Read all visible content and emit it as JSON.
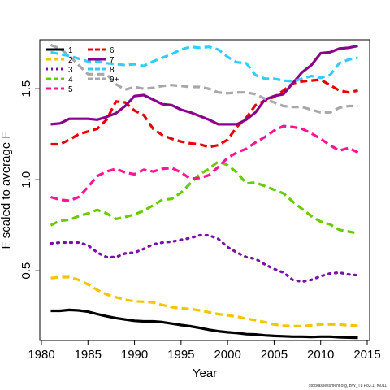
{
  "chart_data": {
    "type": "line",
    "xlabel": "Year",
    "ylabel": "F scaled to average F",
    "xlim": [
      1980,
      2015
    ],
    "ylim": [
      0.1,
      1.9
    ],
    "xticks": [
      1980,
      1985,
      1990,
      1995,
      2000,
      2005,
      2010,
      2015
    ],
    "yticks": [
      0.5,
      1.0,
      1.5
    ],
    "legend_position": "top-left",
    "grid": false,
    "x": [
      1981,
      1982,
      1983,
      1984,
      1985,
      1986,
      1987,
      1988,
      1989,
      1990,
      1991,
      1992,
      1993,
      1994,
      1995,
      1996,
      1997,
      1998,
      1999,
      2000,
      2001,
      2002,
      2003,
      2004,
      2005,
      2006,
      2007,
      2008,
      2009,
      2010,
      2011,
      2012,
      2013,
      2014
    ],
    "series": [
      {
        "name": "1",
        "color": "#000000",
        "dash": "solid",
        "values": [
          0.28,
          0.28,
          0.285,
          0.282,
          0.275,
          0.262,
          0.25,
          0.24,
          0.232,
          0.225,
          0.222,
          0.222,
          0.218,
          0.21,
          0.202,
          0.195,
          0.186,
          0.176,
          0.168,
          0.162,
          0.158,
          0.152,
          0.15,
          0.145,
          0.142,
          0.14,
          0.138,
          0.138,
          0.136,
          0.138,
          0.138,
          0.135,
          0.133,
          0.132
        ]
      },
      {
        "name": "2",
        "color": "#f5c400",
        "dash": "dash",
        "values": [
          0.46,
          0.465,
          0.465,
          0.45,
          0.425,
          0.395,
          0.37,
          0.355,
          0.34,
          0.332,
          0.33,
          0.326,
          0.312,
          0.3,
          0.293,
          0.29,
          0.282,
          0.272,
          0.262,
          0.255,
          0.248,
          0.237,
          0.228,
          0.218,
          0.205,
          0.198,
          0.196,
          0.196,
          0.2,
          0.205,
          0.205,
          0.205,
          0.2,
          0.198
        ]
      },
      {
        "name": "3",
        "color": "#7b10a8",
        "dash": "dot",
        "values": [
          0.65,
          0.655,
          0.655,
          0.655,
          0.64,
          0.6,
          0.575,
          0.575,
          0.595,
          0.6,
          0.62,
          0.645,
          0.655,
          0.66,
          0.67,
          0.68,
          0.695,
          0.695,
          0.675,
          0.63,
          0.6,
          0.575,
          0.565,
          0.535,
          0.51,
          0.49,
          0.45,
          0.44,
          0.45,
          0.47,
          0.485,
          0.49,
          0.48,
          0.475
        ]
      },
      {
        "name": "4",
        "color": "#66cc00",
        "dash": "dash",
        "values": [
          0.75,
          0.775,
          0.78,
          0.8,
          0.815,
          0.835,
          0.815,
          0.785,
          0.795,
          0.81,
          0.83,
          0.86,
          0.89,
          0.895,
          0.93,
          0.98,
          1.03,
          1.06,
          1.1,
          1.08,
          1.04,
          0.98,
          0.985,
          0.965,
          0.945,
          0.925,
          0.88,
          0.84,
          0.8,
          0.77,
          0.755,
          0.725,
          0.715,
          0.705
        ]
      },
      {
        "name": "5",
        "color": "#ff1493",
        "dash": "dash",
        "values": [
          0.905,
          0.89,
          0.885,
          0.905,
          0.96,
          1.02,
          1.045,
          1.06,
          1.04,
          1.03,
          1.055,
          1.045,
          1.06,
          1.065,
          1.04,
          1.005,
          1.01,
          1.025,
          1.07,
          1.12,
          1.15,
          1.17,
          1.205,
          1.235,
          1.27,
          1.295,
          1.29,
          1.28,
          1.255,
          1.225,
          1.19,
          1.16,
          1.175,
          1.15
        ]
      },
      {
        "name": "6",
        "color": "#e60000",
        "dash": "dash",
        "values": [
          1.195,
          1.195,
          1.22,
          1.25,
          1.265,
          1.28,
          1.33,
          1.43,
          1.425,
          1.38,
          1.355,
          1.28,
          1.245,
          1.225,
          1.21,
          1.2,
          1.195,
          1.18,
          1.19,
          1.22,
          1.29,
          1.34,
          1.41,
          1.435,
          1.455,
          1.49,
          1.53,
          1.54,
          1.545,
          1.55,
          1.52,
          1.49,
          1.48,
          1.49
        ]
      },
      {
        "name": "7",
        "color": "#8b008b",
        "dash": "solid",
        "values": [
          1.305,
          1.31,
          1.335,
          1.335,
          1.335,
          1.33,
          1.345,
          1.365,
          1.405,
          1.46,
          1.465,
          1.44,
          1.415,
          1.41,
          1.385,
          1.37,
          1.35,
          1.33,
          1.305,
          1.305,
          1.305,
          1.33,
          1.37,
          1.44,
          1.46,
          1.47,
          1.53,
          1.59,
          1.63,
          1.695,
          1.7,
          1.72,
          1.725,
          1.735
        ]
      },
      {
        "name": "8",
        "color": "#33ccff",
        "dash": "dash",
        "values": [
          1.7,
          1.69,
          1.68,
          1.665,
          1.65,
          1.65,
          1.64,
          1.635,
          1.63,
          1.635,
          1.625,
          1.65,
          1.67,
          1.69,
          1.715,
          1.73,
          1.725,
          1.73,
          1.715,
          1.675,
          1.645,
          1.64,
          1.575,
          1.555,
          1.555,
          1.545,
          1.54,
          1.555,
          1.57,
          1.56,
          1.575,
          1.64,
          1.66,
          1.67
        ]
      },
      {
        "name": "9+",
        "color": "#a8a8a8",
        "dash": "dash",
        "values": [
          1.74,
          1.72,
          1.68,
          1.63,
          1.58,
          1.58,
          1.58,
          1.525,
          1.495,
          1.51,
          1.5,
          1.505,
          1.515,
          1.52,
          1.515,
          1.51,
          1.51,
          1.5,
          1.48,
          1.475,
          1.48,
          1.48,
          1.47,
          1.445,
          1.425,
          1.405,
          1.4,
          1.4,
          1.385,
          1.37,
          1.37,
          1.395,
          1.405,
          1.405
        ]
      }
    ]
  },
  "footer_note": "stockassessment.org, BW_T8 P83.1, r6011"
}
